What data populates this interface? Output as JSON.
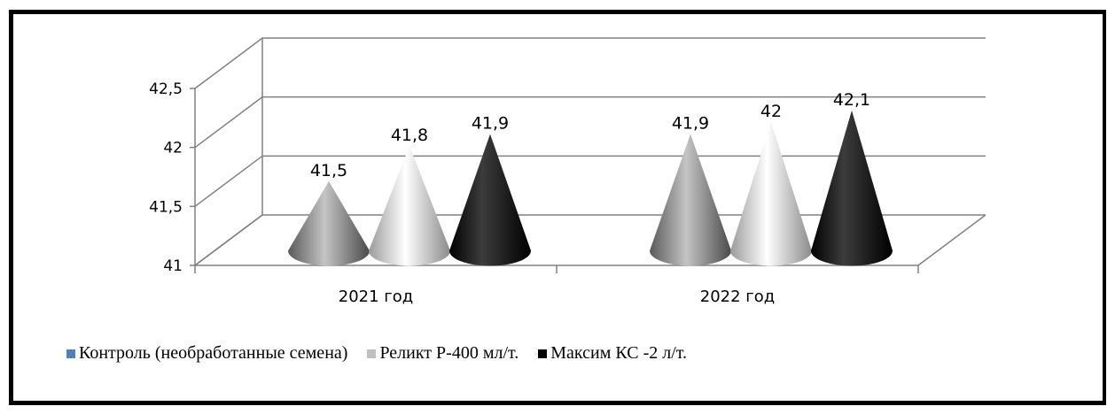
{
  "chart_data": {
    "type": "bar",
    "style": "3d-cone",
    "categories": [
      "2021  год",
      "2022 год"
    ],
    "series": [
      {
        "name": "Контроль (необработанные семена)",
        "values": [
          41.5,
          41.9
        ],
        "color": "#4f81bd",
        "render_color": "#808080"
      },
      {
        "name": "Реликт Р-400 мл/т.",
        "values": [
          41.8,
          42
        ],
        "color": "#c0c0c0",
        "render_color": "#d9d9d9"
      },
      {
        "name": "Максим КС -2 л/т.",
        "values": [
          41.9,
          42.1
        ],
        "color": "#000000",
        "render_color": "#000000"
      }
    ],
    "data_labels": [
      [
        "41,5",
        "41,9"
      ],
      [
        "41,8",
        "42"
      ],
      [
        "41,9",
        "42,1"
      ]
    ],
    "y_ticks": [
      "41",
      "41,5",
      "42",
      "42,5"
    ],
    "ylim": [
      41,
      42.5
    ],
    "grid": true,
    "legend_position": "bottom",
    "title": "",
    "xlabel": "",
    "ylabel": ""
  }
}
